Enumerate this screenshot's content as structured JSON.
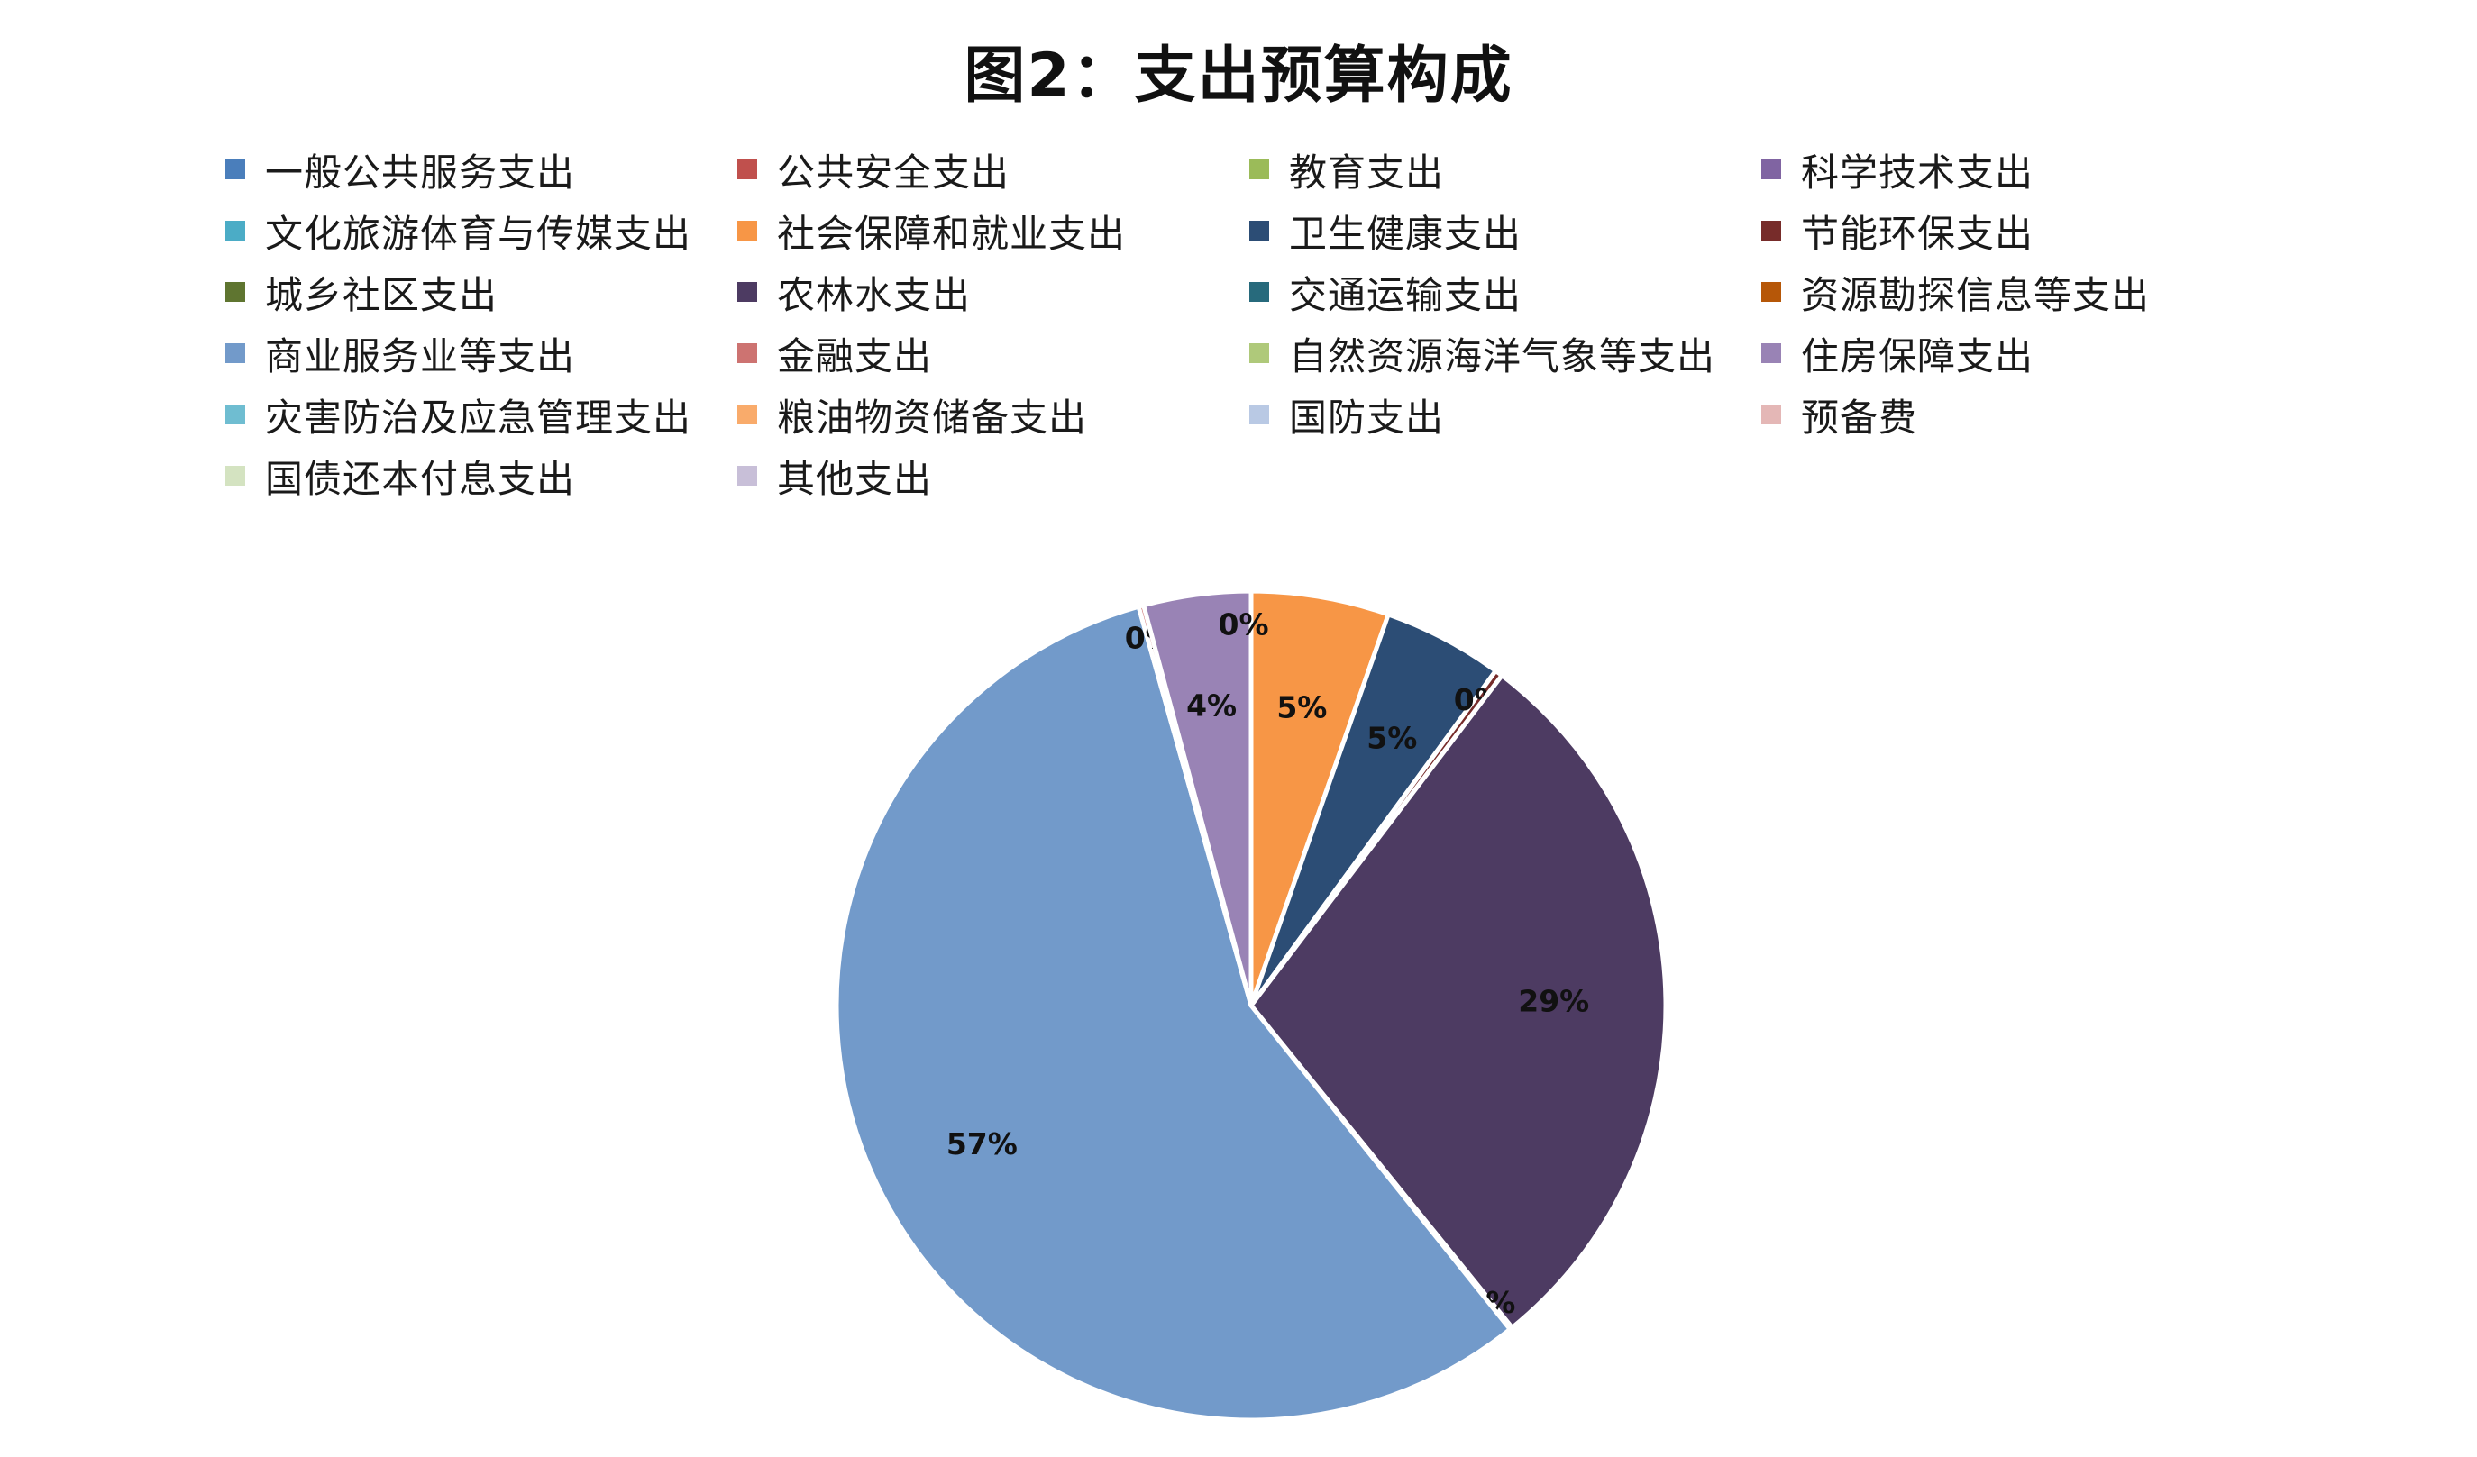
{
  "chart_data": {
    "type": "pie",
    "title": "图2：支出预算构成",
    "legend_position": "top",
    "categories": [
      "一般公共服务支出",
      "公共安全支出",
      "教育支出",
      "科学技术支出",
      "文化旅游体育与传媒支出",
      "社会保障和就业支出",
      "卫生健康支出",
      "节能环保支出",
      "城乡社区支出",
      "农林水支出",
      "交通运输支出",
      "资源勘探信息等支出",
      "商业服务业等支出",
      "金融支出",
      "自然资源海洋气象等支出",
      "住房保障支出",
      "灾害防治及应急管理支出",
      "粮油物资储备支出",
      "国防支出",
      "预备费",
      "国债还本付息支出",
      "其他支出"
    ],
    "values": [
      0,
      0,
      0,
      0,
      0,
      5.4,
      4.7,
      0.3,
      0,
      29,
      0,
      0.1,
      56.7,
      0.2,
      0,
      4.2,
      0,
      0,
      0,
      0,
      0,
      0
    ],
    "data_labels": [
      "",
      "",
      "",
      "",
      "",
      "5%",
      "5%",
      "0%",
      "",
      "29%",
      "",
      "0%",
      "57%",
      "0%",
      "",
      "4%",
      "",
      "",
      "",
      "",
      "",
      "0%"
    ],
    "colors": [
      "#4a7ebb",
      "#c0504d",
      "#9bbb59",
      "#8064a2",
      "#4bacc6",
      "#f79646",
      "#2c4d75",
      "#772c2a",
      "#5f7530",
      "#4d3b62",
      "#276a7c",
      "#b65708",
      "#729aca",
      "#cd7371",
      "#afc97a",
      "#9983b5",
      "#6fbdd1",
      "#f9ab6b",
      "#b9c9e4",
      "#e4b7b6",
      "#d4e3c1",
      "#c8bfd8"
    ]
  }
}
